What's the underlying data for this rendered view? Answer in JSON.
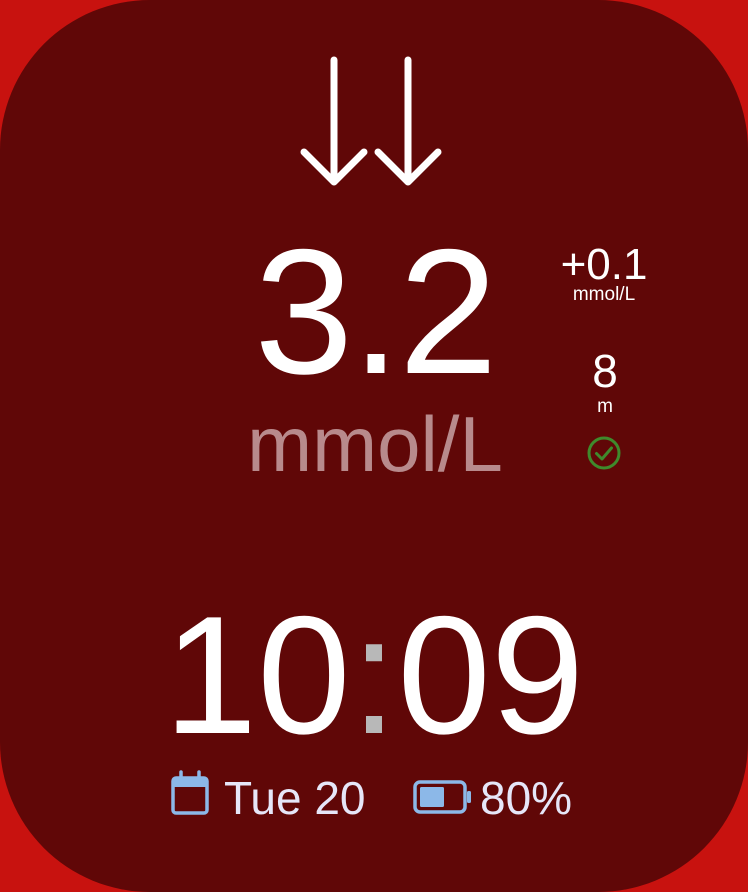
{
  "trend": {
    "icon": "double-down-arrow-icon"
  },
  "glucose": {
    "value": "3.2",
    "unit": "mmol/L",
    "delta": "+0.1",
    "delta_unit": "mmol/L"
  },
  "reading_age": {
    "value": "8",
    "unit": "m",
    "status_icon": "check-circle-icon"
  },
  "clock": {
    "hours": "10",
    "separator": ":",
    "minutes": "09"
  },
  "complications": {
    "date_icon": "calendar-icon",
    "date": "Tue 20",
    "battery_icon": "battery-icon",
    "battery": "80%",
    "battery_level": 0.8
  },
  "colors": {
    "screen_background": "#600707",
    "bezel": "#c8120f",
    "unit_text": "#b88a8c",
    "accent_blue": "#8cb8e8",
    "ok_green": "#3f8a2c",
    "complication_text": "#e6e6f8"
  }
}
